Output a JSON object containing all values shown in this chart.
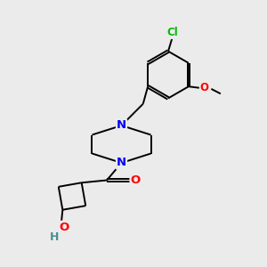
{
  "background_color": "#ebebeb",
  "bond_color": "#000000",
  "atom_colors": {
    "N": "#0000ff",
    "O": "#ff0000",
    "Cl": "#00bb00",
    "H": "#4a9090",
    "C": "#000000"
  }
}
